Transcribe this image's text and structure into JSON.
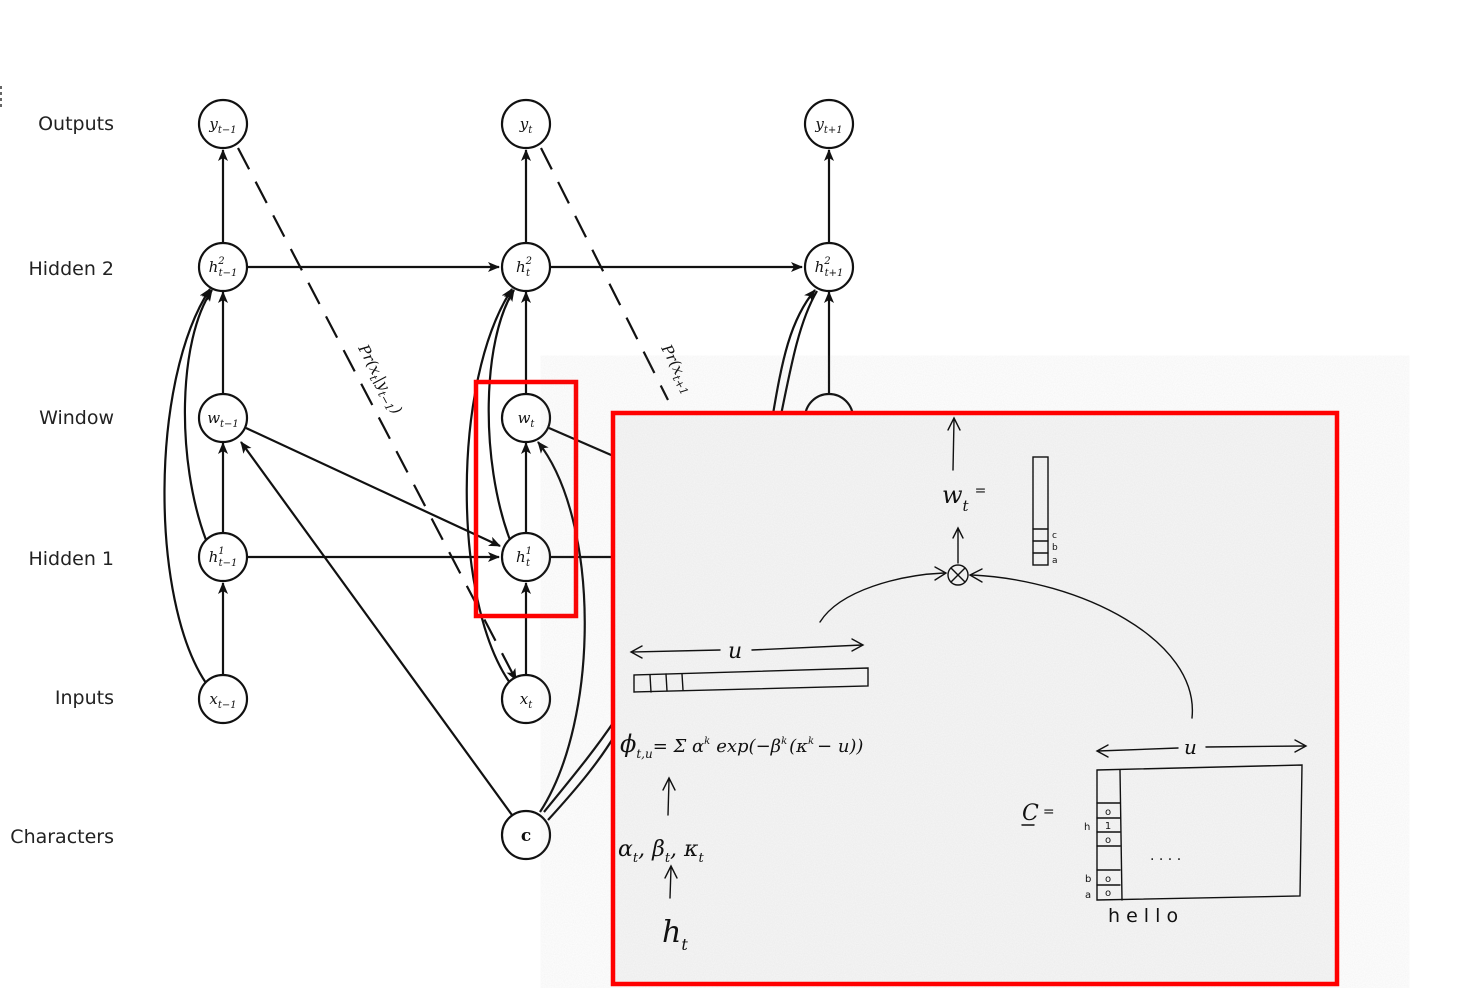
{
  "row_labels": {
    "outputs": "Outputs",
    "hidden2": "Hidden 2",
    "window": "Window",
    "hidden1": "Hidden 1",
    "inputs": "Inputs",
    "characters": "Characters"
  },
  "nodes": {
    "y_prev": {
      "base": "y",
      "sub": "t−1",
      "sup": ""
    },
    "y_t": {
      "base": "y",
      "sub": "t",
      "sup": ""
    },
    "y_next": {
      "base": "y",
      "sub": "t+1",
      "sup": ""
    },
    "h2_prev": {
      "base": "h",
      "sub": "t−1",
      "sup": "2"
    },
    "h2_t": {
      "base": "h",
      "sub": "t",
      "sup": "2"
    },
    "h2_next": {
      "base": "h",
      "sub": "t+1",
      "sup": "2"
    },
    "w_prev": {
      "base": "w",
      "sub": "t−1",
      "sup": ""
    },
    "w_t": {
      "base": "w",
      "sub": "t",
      "sup": ""
    },
    "h1_prev": {
      "base": "h",
      "sub": "t−1",
      "sup": "1"
    },
    "h1_t": {
      "base": "h",
      "sub": "t",
      "sup": "1"
    },
    "x_prev": {
      "base": "x",
      "sub": "t−1",
      "sup": ""
    },
    "x_t": {
      "base": "x",
      "sub": "t",
      "sup": ""
    },
    "c": {
      "label": "c"
    }
  },
  "dashed_labels": {
    "first": "Pr(x_t|y_{t−1})",
    "first_main": "Pr(x",
    "first_sub1": "t",
    "first_mid": "|y",
    "first_sub2": "t−1",
    "first_end": ")",
    "second_main": "Pr(x",
    "second_sub1": "t+1"
  },
  "inset": {
    "w_label": "w",
    "w_sub": "t",
    "w_eq": "=",
    "vector_letters": [
      "c",
      "b",
      "a"
    ],
    "u_top": "u",
    "u_bottom": "u",
    "phi_formula": "ϕ",
    "phi_sub": "t,u",
    "phi_rest": "= Σ α",
    "phi_k": "k",
    "phi_exp": "exp(−β",
    "phi_tail": "(κ",
    "phi_end": "− u))",
    "params": "α",
    "params_sub_t": "t",
    "params_beta": ", β",
    "params_kappa": ", κ",
    "h_label": "h",
    "c_label": "C",
    "c_eq": "=",
    "matrix_row_letters": [
      "h",
      "b",
      "a"
    ],
    "matrix_cells": [
      "o",
      "1",
      "o",
      "o",
      "o"
    ],
    "word": "h e l l o",
    "dots": ". . . ."
  },
  "colors": {
    "highlight": "#ff0000",
    "ink": "#111111",
    "inset_bg": "#f4f4f4"
  }
}
